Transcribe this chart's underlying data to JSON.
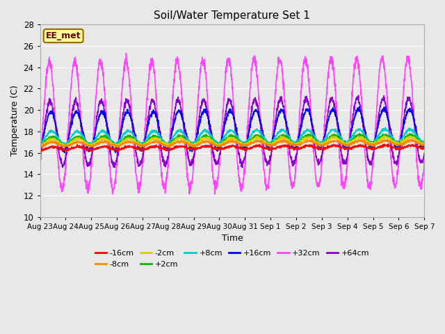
{
  "title": "Soil/Water Temperature Set 1",
  "xlabel": "Time",
  "ylabel": "Temperature (C)",
  "ylim": [
    10,
    28
  ],
  "yticks": [
    10,
    12,
    14,
    16,
    18,
    20,
    22,
    24,
    26,
    28
  ],
  "num_days": 15,
  "label_text": "EE_met",
  "series": [
    {
      "label": "-16cm",
      "color": "#ff0000",
      "base": 16.4,
      "amp": 0.15,
      "phase": 0.0,
      "trend": 0.01
    },
    {
      "label": "-8cm",
      "color": "#ff8800",
      "base": 16.8,
      "amp": 0.2,
      "phase": 0.1,
      "trend": 0.01
    },
    {
      "label": "-2cm",
      "color": "#ddcc00",
      "base": 17.0,
      "amp": 0.3,
      "phase": 0.15,
      "trend": 0.012
    },
    {
      "label": "+2cm",
      "color": "#00bb00",
      "base": 17.1,
      "amp": 0.4,
      "phase": 0.2,
      "trend": 0.013
    },
    {
      "label": "+8cm",
      "color": "#00cccc",
      "base": 17.4,
      "amp": 0.6,
      "phase": 0.3,
      "trend": 0.014
    },
    {
      "label": "+16cm",
      "color": "#0000ee",
      "base": 18.0,
      "amp": 1.8,
      "phase": 0.5,
      "trend": 0.02
    },
    {
      "label": "+32cm",
      "color": "#ff44ff",
      "base": 18.5,
      "amp": 6.0,
      "phase": 0.9,
      "trend": 0.025
    },
    {
      "label": "+64cm",
      "color": "#8800cc",
      "base": 17.8,
      "amp": 3.0,
      "phase": 0.7,
      "trend": 0.02
    }
  ],
  "bg_color": "#e8e8e8",
  "plot_bg": "#e8e8e8",
  "grid_color": "#ffffff",
  "xtick_labels": [
    "Aug 23",
    "Aug 24",
    "Aug 25",
    "Aug 26",
    "Aug 27",
    "Aug 28",
    "Aug 29",
    "Aug 30",
    "Aug 31",
    "Sep 1",
    "Sep 2",
    "Sep 3",
    "Sep 4",
    "Sep 5",
    "Sep 6",
    "Sep 7"
  ]
}
